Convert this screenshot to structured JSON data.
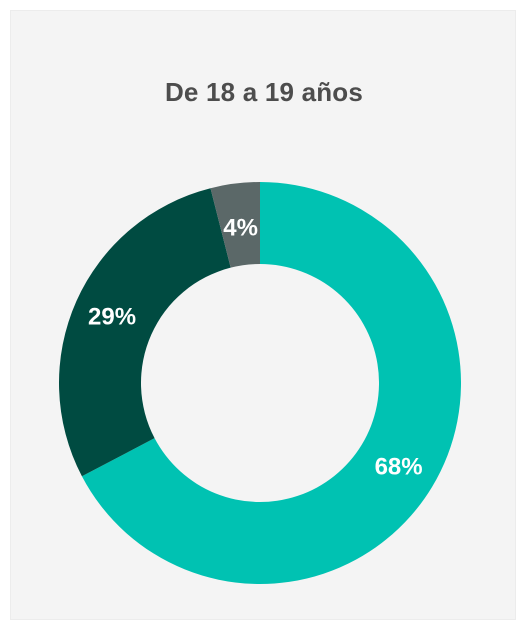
{
  "chart_data": {
    "type": "pie",
    "title": "De 18 a 19 años",
    "slices": [
      {
        "label": "68%",
        "value": 68,
        "color": "#00c2b2"
      },
      {
        "label": "29%",
        "value": 29,
        "color": "#004b41"
      },
      {
        "label": "4%",
        "value": 4,
        "color": "#5b6868"
      }
    ],
    "donut": true
  }
}
